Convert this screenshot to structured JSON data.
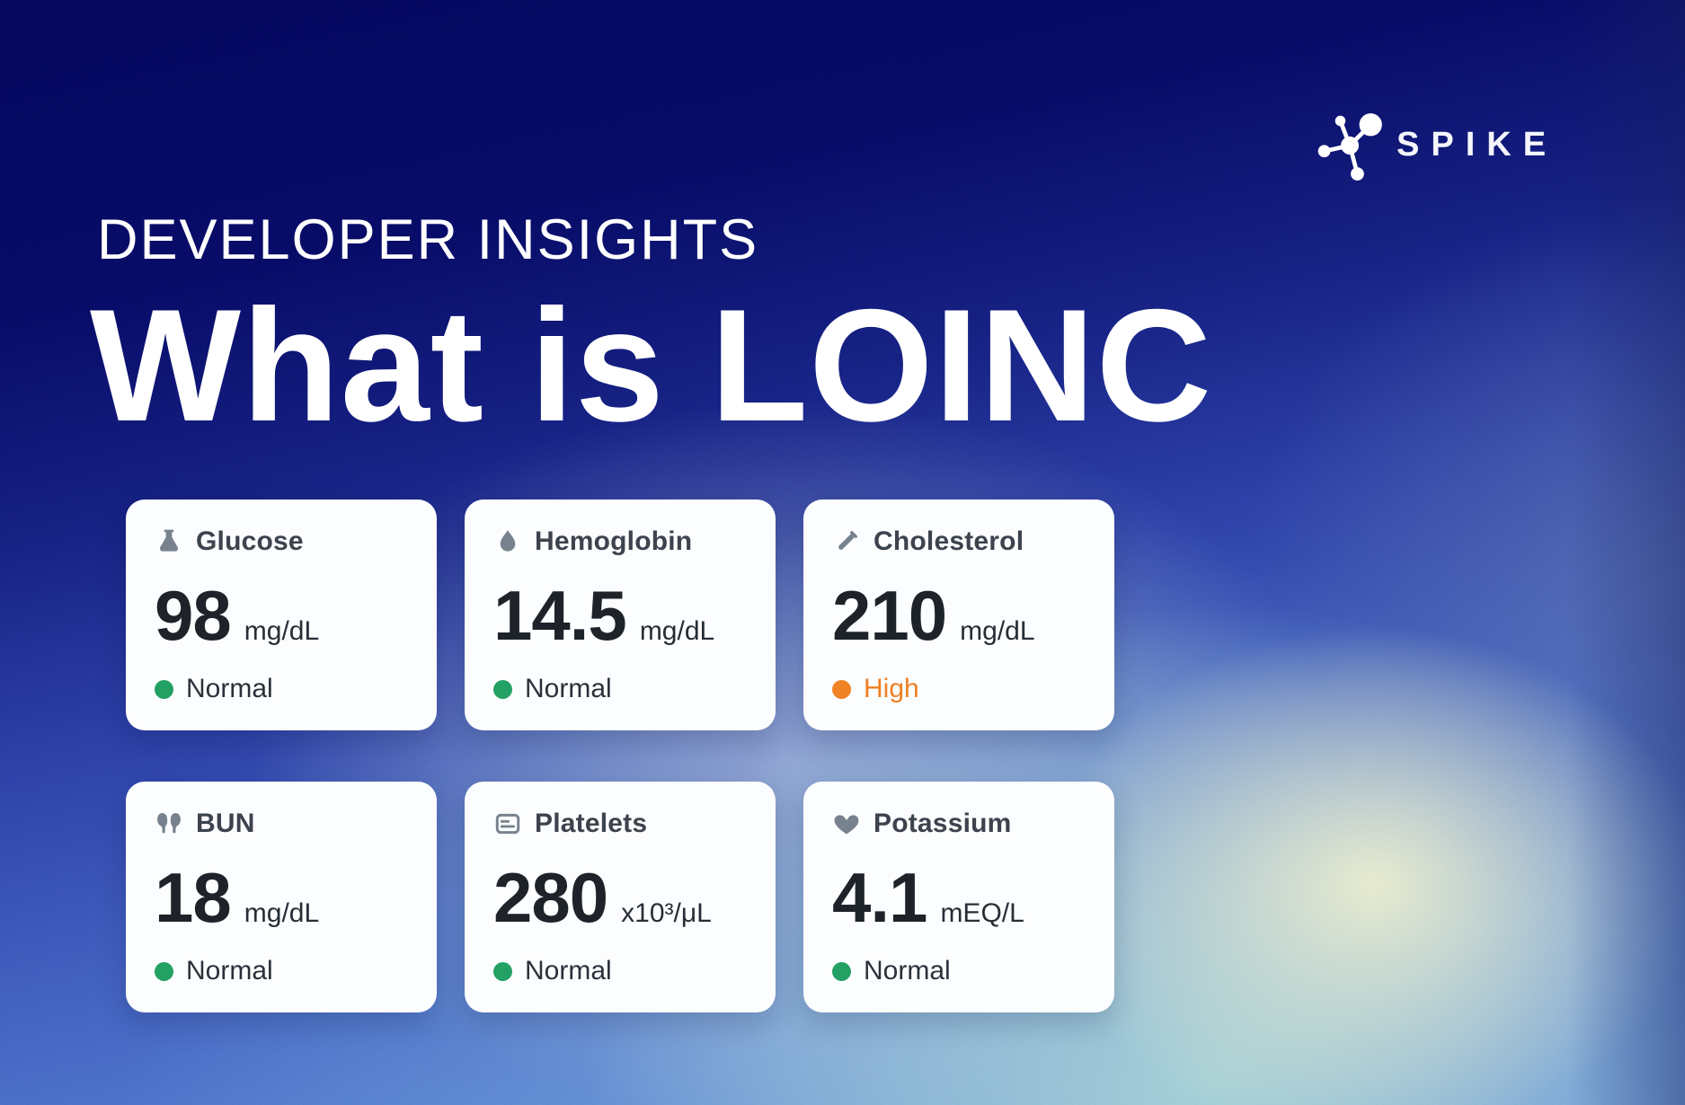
{
  "logo": {
    "brand": "SPIKE",
    "icon": "molecule-icon"
  },
  "header": {
    "eyebrow": "DEVELOPER INSIGHTS",
    "title": "What is LOINC"
  },
  "cards": [
    {
      "name": "Glucose",
      "icon": "flask-icon",
      "value": "98",
      "unit": "mg/dL",
      "status": "Normal",
      "status_kind": "normal"
    },
    {
      "name": "Hemoglobin",
      "icon": "drop-icon",
      "value": "14.5",
      "unit": "mg/dL",
      "status": "Normal",
      "status_kind": "normal"
    },
    {
      "name": "Cholesterol",
      "icon": "test-tube-icon",
      "value": "210",
      "unit": "mg/dL",
      "status": "High",
      "status_kind": "high"
    },
    {
      "name": "BUN",
      "icon": "kidney-icon",
      "value": "18",
      "unit": "mg/dL",
      "status": "Normal",
      "status_kind": "normal"
    },
    {
      "name": "Platelets",
      "icon": "card-lines-icon",
      "value": "280",
      "unit": "x10³/μL",
      "status": "Normal",
      "status_kind": "normal"
    },
    {
      "name": "Potassium",
      "icon": "heart-icon",
      "value": "4.1",
      "unit": "mEQ/L",
      "status": "Normal",
      "status_kind": "normal"
    }
  ],
  "colors": {
    "status_normal_dot": "#23a164",
    "status_normal_text": "#2a313a",
    "status_high_dot": "#f08326",
    "status_high_text": "#ef7f22",
    "icon_gray": "#78828e",
    "card_bg": "#fcfdfe",
    "bg_top_navy": "#05085c",
    "bg_mid_blue": "#2a3da3",
    "bg_bottom_blue": "#5c88d6",
    "glow_cream": "#ecedcd",
    "glow_cyan": "#a8d5d5",
    "text_white": "#ffffff"
  }
}
